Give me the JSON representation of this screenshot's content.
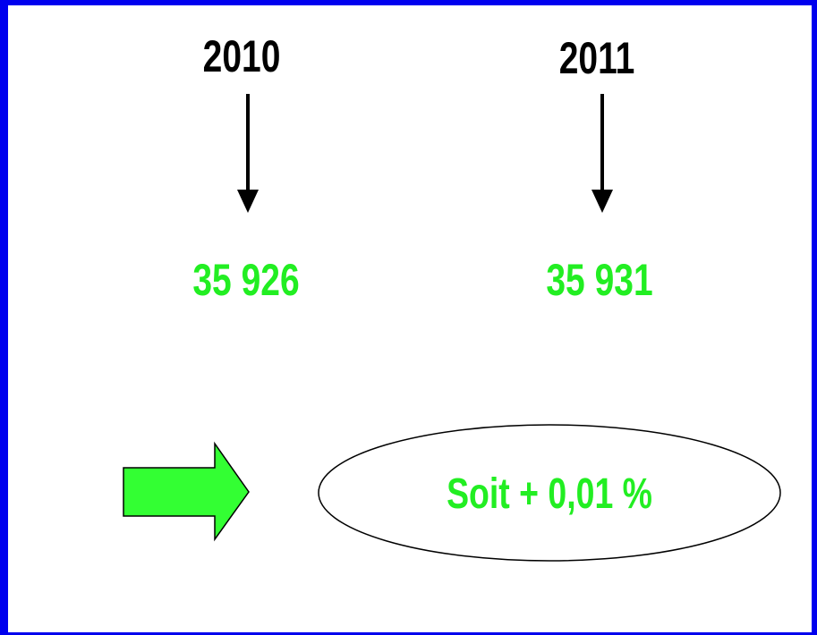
{
  "columns": [
    {
      "year": "2010",
      "value": "35 926"
    },
    {
      "year": "2011",
      "value": "35 931"
    }
  ],
  "result": "Soit + 0,01 %"
}
